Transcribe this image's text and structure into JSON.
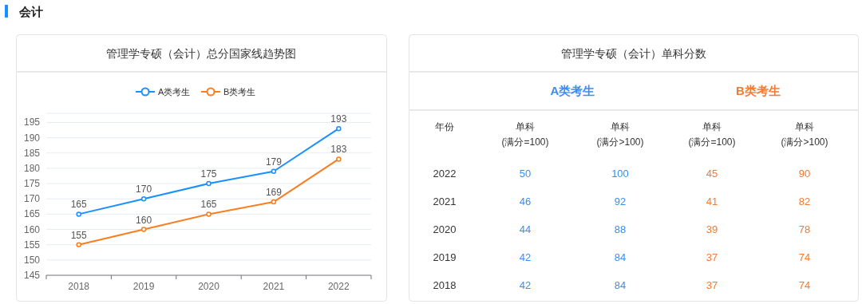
{
  "chart_data": [
    {
      "type": "other",
      "title": "会计"
    },
    {
      "type": "line",
      "title": "管理学专硕（会计）总分国家线趋势图",
      "categories": [
        "2018",
        "2019",
        "2020",
        "2021",
        "2022"
      ],
      "series": [
        {
          "name": "A类考生",
          "color": "#1890ff",
          "values": [
            165,
            170,
            175,
            179,
            193
          ]
        },
        {
          "name": "B类考生",
          "color": "#fa7d1e",
          "values": [
            155,
            160,
            165,
            169,
            183
          ]
        }
      ],
      "ylim": [
        145,
        198
      ],
      "yticks": [
        145,
        150,
        155,
        160,
        165,
        170,
        175,
        180,
        185,
        190,
        195
      ],
      "grid": "y",
      "legend": "top",
      "marker": "circle",
      "data_labels": true
    },
    {
      "type": "heatmap",
      "title": "管理学专硕（会计）单科分数",
      "ylabel": "年份",
      "annotations": [
        "A类考生",
        "B类考生"
      ],
      "categories": [
        "单科\n(满分=100)",
        "单科\n(满分>100)",
        "单科\n(满分=100)",
        "单科\n(满分>100)"
      ],
      "y_categories": [
        "2022",
        "2021",
        "2020",
        "2019",
        "2018"
      ],
      "cells": [
        [
          50,
          100,
          45,
          90
        ],
        [
          46,
          92,
          41,
          82
        ],
        [
          44,
          88,
          39,
          78
        ],
        [
          42,
          84,
          37,
          74
        ],
        [
          42,
          84,
          37,
          74
        ]
      ],
      "colors": [
        "#3b8cf5",
        "#3b8cf5",
        "#f5792f",
        "#f5792f"
      ],
      "data_labels": true
    }
  ]
}
